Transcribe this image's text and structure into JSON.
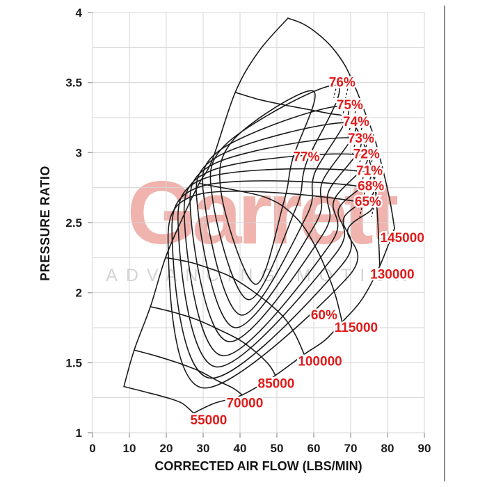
{
  "watermark": {
    "brand": "Garrett",
    "tagline": "ADVANCING MOTION",
    "brand_color": "#f0b3ad",
    "tagline_color": "#d4d4d4"
  },
  "style": {
    "curve_color": "#1a1a1a",
    "label_color": "#e01b1b",
    "grid_color": "#d6d6d6",
    "tick_color": "#a6a6a6",
    "axis_text_color": "#1c1c1c"
  },
  "chart_data": {
    "type": "line",
    "subtype": "compressor-map-contours",
    "title": "",
    "xlabel": "CORRECTED AIR FLOW (LBS/MIN)",
    "ylabel": "PRESSURE RATIO",
    "xlim": [
      0,
      90
    ],
    "ylim": [
      1,
      4
    ],
    "x_ticks": [
      "0",
      "10",
      "20",
      "30",
      "40",
      "50",
      "60",
      "70",
      "80",
      "90"
    ],
    "y_ticks": [
      "1",
      "1.5",
      "2",
      "2.5",
      "3",
      "3.5",
      "4"
    ],
    "y_grid_step": 0.25,
    "grid": true,
    "legend_position": "none",
    "surge_line": {
      "points": [
        [
          8.5,
          1.33
        ],
        [
          11.3,
          1.59
        ],
        [
          15.7,
          1.9
        ],
        [
          19.8,
          2.25
        ],
        [
          24.7,
          2.55
        ],
        [
          28.9,
          2.78
        ],
        [
          32.5,
          2.95
        ],
        [
          38.7,
          3.43
        ],
        [
          45.0,
          3.72
        ],
        [
          53.0,
          3.96
        ]
      ]
    },
    "choke_boundary": {
      "efficiency": "60%",
      "points": [
        [
          27.4,
          1.14
        ],
        [
          33.0,
          1.21
        ],
        [
          40.6,
          1.27
        ],
        [
          49.6,
          1.41
        ],
        [
          57.4,
          1.56
        ],
        [
          63.0,
          1.66
        ],
        [
          67.7,
          1.79
        ],
        [
          73.0,
          1.95
        ],
        [
          77.9,
          2.19
        ],
        [
          81.9,
          2.46
        ]
      ]
    },
    "speed_lines": [
      {
        "label": "55000",
        "label_pos": [
          31.5,
          1.09
        ],
        "points": [
          [
            8.5,
            1.33
          ],
          [
            14.5,
            1.29
          ],
          [
            20.2,
            1.25
          ],
          [
            24.3,
            1.21
          ],
          [
            27.4,
            1.14
          ]
        ]
      },
      {
        "label": "70000",
        "label_pos": [
          41.3,
          1.21
        ],
        "points": [
          [
            11.3,
            1.59
          ],
          [
            17.0,
            1.55
          ],
          [
            23.0,
            1.5
          ],
          [
            29.0,
            1.44
          ],
          [
            34.0,
            1.37
          ],
          [
            38.0,
            1.32
          ],
          [
            40.6,
            1.27
          ]
        ]
      },
      {
        "label": "85000",
        "label_pos": [
          49.8,
          1.35
        ],
        "points": [
          [
            15.7,
            1.9
          ],
          [
            22.0,
            1.86
          ],
          [
            28.0,
            1.81
          ],
          [
            34.0,
            1.74
          ],
          [
            40.0,
            1.66
          ],
          [
            45.0,
            1.56
          ],
          [
            48.0,
            1.48
          ],
          [
            49.6,
            1.41
          ]
        ]
      },
      {
        "label": "100000",
        "label_pos": [
          61.7,
          1.51
        ],
        "points": [
          [
            19.8,
            2.25
          ],
          [
            26.0,
            2.22
          ],
          [
            31.0,
            2.18
          ],
          [
            37.0,
            2.12
          ],
          [
            43.0,
            2.02
          ],
          [
            48.0,
            1.92
          ],
          [
            52.0,
            1.82
          ],
          [
            55.0,
            1.7
          ],
          [
            57.4,
            1.56
          ]
        ]
      },
      {
        "label": "115000",
        "label_pos": [
          71.5,
          1.75
        ],
        "points": [
          [
            28.9,
            2.78
          ],
          [
            35.0,
            2.75
          ],
          [
            41.0,
            2.72
          ],
          [
            47.0,
            2.68
          ],
          [
            52.0,
            2.61
          ],
          [
            57.0,
            2.48
          ],
          [
            61.0,
            2.3
          ],
          [
            64.0,
            2.12
          ],
          [
            66.0,
            1.97
          ],
          [
            67.7,
            1.79
          ]
        ]
      },
      {
        "label": "130000",
        "label_pos": [
          81.3,
          2.13
        ],
        "points": [
          [
            38.7,
            3.43
          ],
          [
            45.0,
            3.38
          ],
          [
            52.0,
            3.34
          ],
          [
            58.0,
            3.31
          ],
          [
            64.0,
            3.28
          ],
          [
            69.0,
            3.25
          ],
          [
            72.5,
            3.13
          ],
          [
            75.0,
            2.95
          ],
          [
            76.4,
            2.8
          ],
          [
            77.3,
            2.54
          ],
          [
            77.9,
            2.19
          ]
        ]
      },
      {
        "label": "145000",
        "label_pos": [
          84.0,
          2.39
        ],
        "points": [
          [
            53.0,
            3.96
          ],
          [
            57.0,
            3.92
          ],
          [
            61.0,
            3.85
          ],
          [
            65.0,
            3.75
          ],
          [
            68.5,
            3.62
          ],
          [
            71.5,
            3.45
          ],
          [
            74.0,
            3.28
          ],
          [
            76.5,
            3.1
          ],
          [
            79.0,
            2.85
          ],
          [
            80.7,
            2.65
          ],
          [
            81.9,
            2.46
          ]
        ]
      }
    ],
    "efficiency_islands": [
      {
        "label": "77%",
        "label_pos": [
          58.0,
          2.97
        ],
        "dashed_leader": false,
        "points": [
          [
            44.2,
            2.06
          ],
          [
            34.9,
            2.71
          ],
          [
            38.5,
            3.1
          ],
          [
            59.8,
            3.44
          ],
          [
            54.2,
            2.95
          ],
          [
            51.9,
            2.65
          ]
        ]
      },
      {
        "label": "76%",
        "label_pos": [
          67.7,
          3.5
        ],
        "dashed_leader": true,
        "points": [
          [
            42.3,
            1.95
          ],
          [
            32.6,
            2.66
          ],
          [
            36.6,
            3.07
          ],
          [
            66.2,
            3.48
          ],
          [
            57.9,
            2.92
          ],
          [
            55.1,
            2.6
          ]
        ]
      },
      {
        "label": "75%",
        "label_pos": [
          69.8,
          3.34
        ],
        "dashed_leader": true,
        "points": [
          [
            40.4,
            1.84
          ],
          [
            30.6,
            2.61
          ],
          [
            34.7,
            3.02
          ],
          [
            68.5,
            3.33
          ],
          [
            60.2,
            2.85
          ],
          [
            57.9,
            2.54
          ]
        ]
      },
      {
        "label": "74%",
        "label_pos": [
          71.5,
          3.22
        ],
        "dashed_leader": true,
        "points": [
          [
            38.7,
            1.75
          ],
          [
            28.7,
            2.56
          ],
          [
            33.8,
            2.97
          ],
          [
            70.2,
            3.21
          ],
          [
            62.3,
            2.79
          ],
          [
            60.2,
            2.48
          ]
        ]
      },
      {
        "label": "73%",
        "label_pos": [
          72.8,
          3.1
        ],
        "dashed_leader": true,
        "points": [
          [
            37.0,
            1.65
          ],
          [
            26.8,
            2.51
          ],
          [
            33.0,
            2.92
          ],
          [
            71.5,
            3.1
          ],
          [
            64.0,
            2.72
          ],
          [
            62.3,
            2.41
          ]
        ]
      },
      {
        "label": "72%",
        "label_pos": [
          74.3,
          2.99
        ],
        "dashed_leader": true,
        "points": [
          [
            35.3,
            1.55
          ],
          [
            25.1,
            2.45
          ],
          [
            32.1,
            2.87
          ],
          [
            73.0,
            2.98
          ],
          [
            65.5,
            2.66
          ],
          [
            64.3,
            2.34
          ]
        ]
      },
      {
        "label": "71%",
        "label_pos": [
          75.1,
          2.87
        ],
        "dashed_leader": true,
        "points": [
          [
            33.6,
            1.47
          ],
          [
            23.4,
            2.39
          ],
          [
            30.8,
            2.82
          ],
          [
            73.8,
            2.86
          ],
          [
            66.8,
            2.6
          ],
          [
            66.0,
            2.28
          ]
        ]
      },
      {
        "label": "68%",
        "label_pos": [
          75.5,
          2.76
        ],
        "dashed_leader": true,
        "points": [
          [
            31.9,
            1.39
          ],
          [
            21.7,
            2.32
          ],
          [
            29.6,
            2.76
          ],
          [
            74.3,
            2.75
          ],
          [
            68.1,
            2.53
          ],
          [
            67.7,
            2.2
          ]
        ]
      },
      {
        "label": "65%",
        "label_pos": [
          74.7,
          2.65
        ],
        "dashed_leader": true,
        "points": [
          [
            30.0,
            1.32
          ],
          [
            20.6,
            2.25
          ],
          [
            28.5,
            2.7
          ],
          [
            73.6,
            2.64
          ],
          [
            69.2,
            2.45
          ],
          [
            69.2,
            2.11
          ]
        ]
      },
      {
        "label": "60%",
        "label_pos": [
          62.8,
          1.84
        ],
        "dashed_leader": false,
        "points": []
      }
    ]
  }
}
